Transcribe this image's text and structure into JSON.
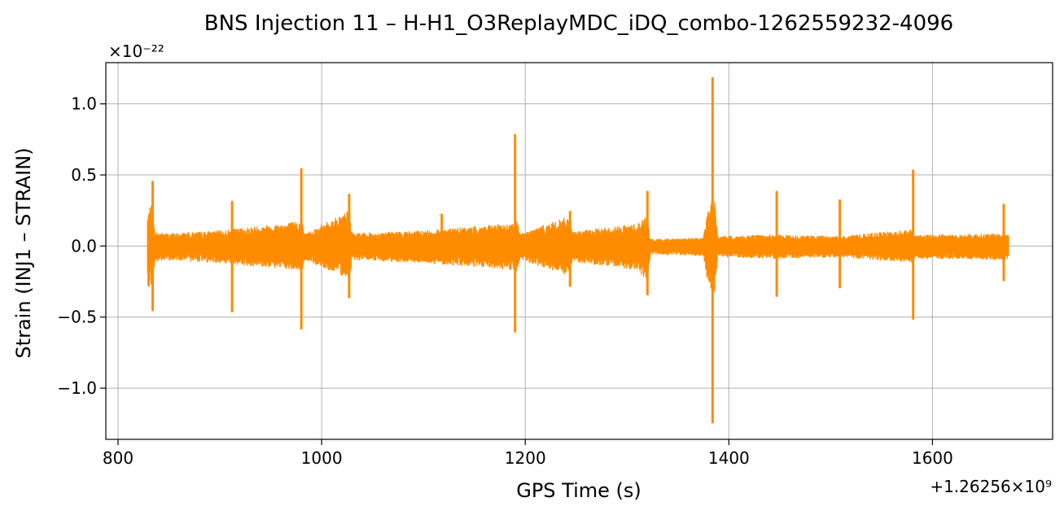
{
  "chart_data": {
    "type": "line",
    "title": "BNS Injection 11 – H-H1_O3ReplayMDC_iDQ_combo-1262559232-4096",
    "xlabel": "GPS Time (s)",
    "ylabel": "Strain (INJ1 – STRAIN)",
    "x_offset_label": "+1.26256×10⁹",
    "y_multiplier_label": "×10⁻²²",
    "xlim": [
      788,
      1718
    ],
    "ylim": [
      -1.36,
      1.29
    ],
    "x_ticks": [
      800,
      1000,
      1200,
      1400,
      1600
    ],
    "x_tick_labels": [
      "800",
      "1000",
      "1200",
      "1400",
      "1600"
    ],
    "y_ticks": [
      1.0,
      0.5,
      0.0,
      -0.5,
      -1.0
    ],
    "y_tick_labels": [
      "1.0",
      "0.5",
      "0.0",
      "−0.5",
      "−1.0"
    ],
    "grid": true,
    "series": [
      {
        "color": "#ff8c00",
        "data_start": 829,
        "data_end": 1675,
        "envelope": [
          {
            "x": 829,
            "upper": 0.22,
            "lower": -0.28
          },
          {
            "x": 833,
            "upper": 0.3,
            "lower": -0.3
          },
          {
            "x": 836,
            "upper": 0.1,
            "lower": -0.12
          },
          {
            "x": 850,
            "upper": 0.09,
            "lower": -0.1
          },
          {
            "x": 900,
            "upper": 0.11,
            "lower": -0.12
          },
          {
            "x": 970,
            "upper": 0.17,
            "lower": -0.17
          },
          {
            "x": 981,
            "upper": 0.18,
            "lower": -0.18
          },
          {
            "x": 983,
            "upper": 0.09,
            "lower": -0.1
          },
          {
            "x": 1024,
            "upper": 0.24,
            "lower": -0.22
          },
          {
            "x": 1027,
            "upper": 0.26,
            "lower": -0.25
          },
          {
            "x": 1030,
            "upper": 0.09,
            "lower": -0.1
          },
          {
            "x": 1100,
            "upper": 0.11,
            "lower": -0.12
          },
          {
            "x": 1185,
            "upper": 0.16,
            "lower": -0.17
          },
          {
            "x": 1192,
            "upper": 0.18,
            "lower": -0.18
          },
          {
            "x": 1195,
            "upper": 0.09,
            "lower": -0.1
          },
          {
            "x": 1243,
            "upper": 0.21,
            "lower": -0.22
          },
          {
            "x": 1246,
            "upper": 0.1,
            "lower": -0.11
          },
          {
            "x": 1310,
            "upper": 0.16,
            "lower": -0.17
          },
          {
            "x": 1320,
            "upper": 0.22,
            "lower": -0.25
          },
          {
            "x": 1323,
            "upper": 0.05,
            "lower": -0.06
          },
          {
            "x": 1375,
            "upper": 0.06,
            "lower": -0.07
          },
          {
            "x": 1380,
            "upper": 0.3,
            "lower": -0.3
          },
          {
            "x": 1386,
            "upper": 0.35,
            "lower": -0.35
          },
          {
            "x": 1389,
            "upper": 0.07,
            "lower": -0.08
          },
          {
            "x": 1440,
            "upper": 0.08,
            "lower": -0.09
          },
          {
            "x": 1449,
            "upper": 0.08,
            "lower": -0.09
          },
          {
            "x": 1510,
            "upper": 0.07,
            "lower": -0.08
          },
          {
            "x": 1580,
            "upper": 0.12,
            "lower": -0.12
          },
          {
            "x": 1583,
            "upper": 0.08,
            "lower": -0.09
          },
          {
            "x": 1675,
            "upper": 0.09,
            "lower": -0.1
          }
        ],
        "spikes": [
          {
            "x": 834,
            "max": 0.45,
            "min": -0.45
          },
          {
            "x": 912,
            "max": 0.31,
            "min": -0.46
          },
          {
            "x": 980,
            "max": 0.54,
            "min": -0.58
          },
          {
            "x": 1027,
            "max": 0.36,
            "min": -0.36
          },
          {
            "x": 1118,
            "max": 0.22,
            "min": -0.1
          },
          {
            "x": 1190,
            "max": 0.78,
            "min": -0.6
          },
          {
            "x": 1244,
            "max": 0.24,
            "min": -0.28
          },
          {
            "x": 1320,
            "max": 0.38,
            "min": -0.34
          },
          {
            "x": 1384,
            "max": 1.18,
            "min": -1.24
          },
          {
            "x": 1447,
            "max": 0.38,
            "min": -0.35
          },
          {
            "x": 1509,
            "max": 0.32,
            "min": -0.29
          },
          {
            "x": 1581,
            "max": 0.53,
            "min": -0.51
          },
          {
            "x": 1670,
            "max": 0.29,
            "min": -0.24
          }
        ]
      }
    ]
  }
}
